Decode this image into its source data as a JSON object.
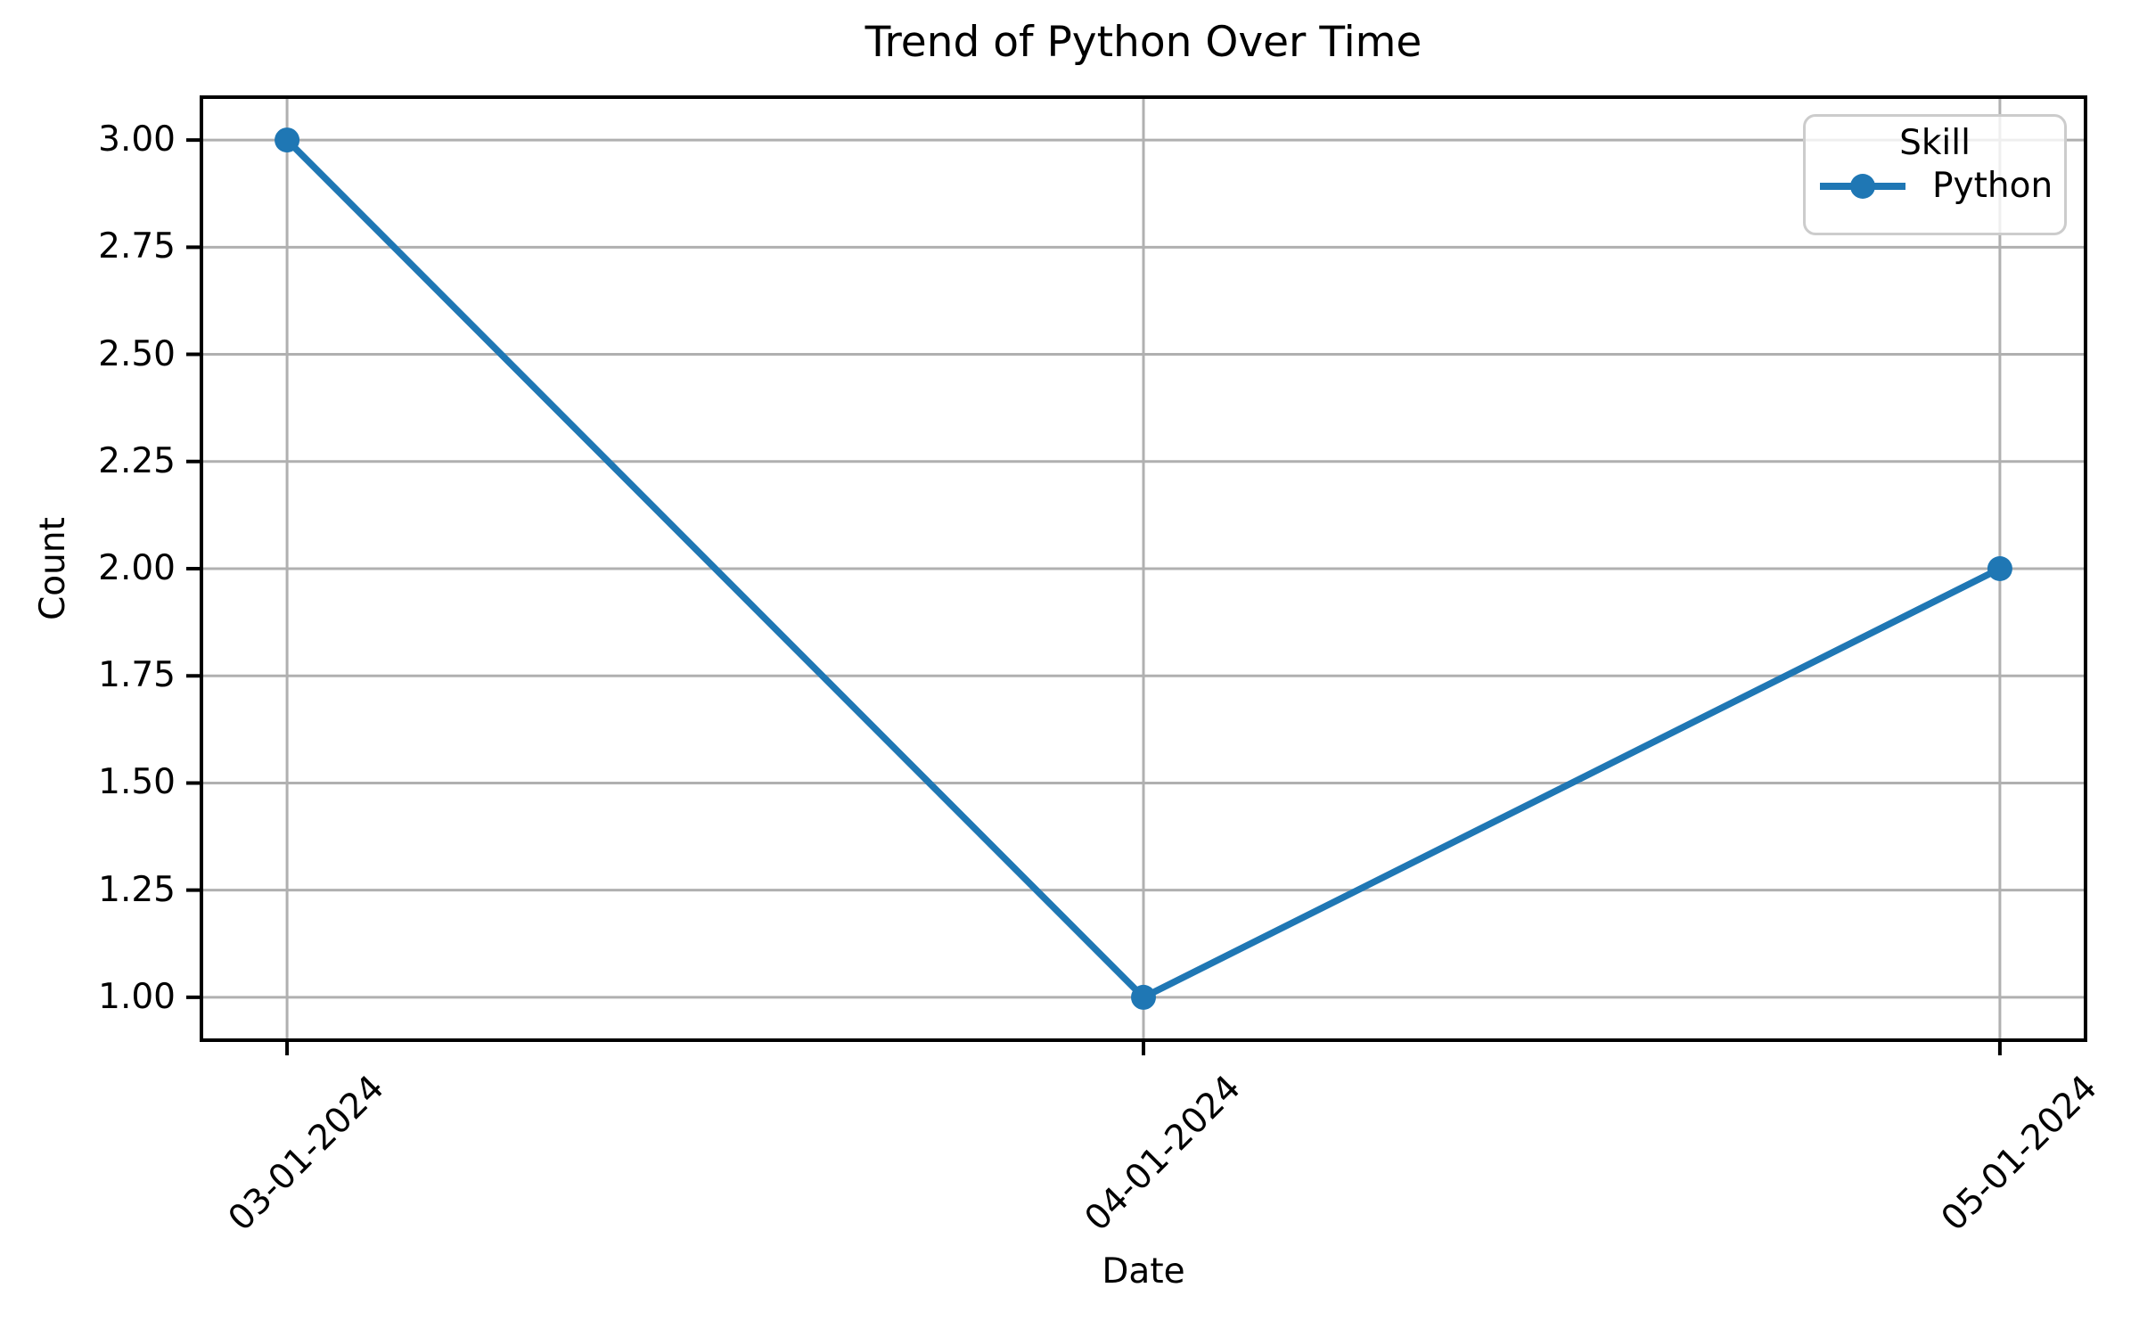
{
  "chart_data": {
    "type": "line",
    "title": "Trend of Python Over Time",
    "xlabel": "Date",
    "ylabel": "Count",
    "categories": [
      "03-01-2024",
      "04-01-2024",
      "05-01-2024"
    ],
    "series": [
      {
        "name": "Python",
        "values": [
          3,
          1,
          2
        ],
        "color": "#1f77b4",
        "marker": "circle"
      }
    ],
    "y_ticks": [
      1.0,
      1.25,
      1.5,
      1.75,
      2.0,
      2.25,
      2.5,
      2.75,
      3.0
    ],
    "y_tick_labels": [
      "1.00",
      "1.25",
      "1.50",
      "1.75",
      "2.00",
      "2.25",
      "2.50",
      "2.75",
      "3.00"
    ],
    "ylim": [
      0.9,
      3.1
    ],
    "xlim_index": [
      -0.1,
      2.1
    ],
    "grid": true,
    "grid_color": "#b0b0b0",
    "axis_color": "#000000",
    "background_color": "#ffffff",
    "legend": {
      "title": "Skill",
      "position": "upper right"
    }
  }
}
